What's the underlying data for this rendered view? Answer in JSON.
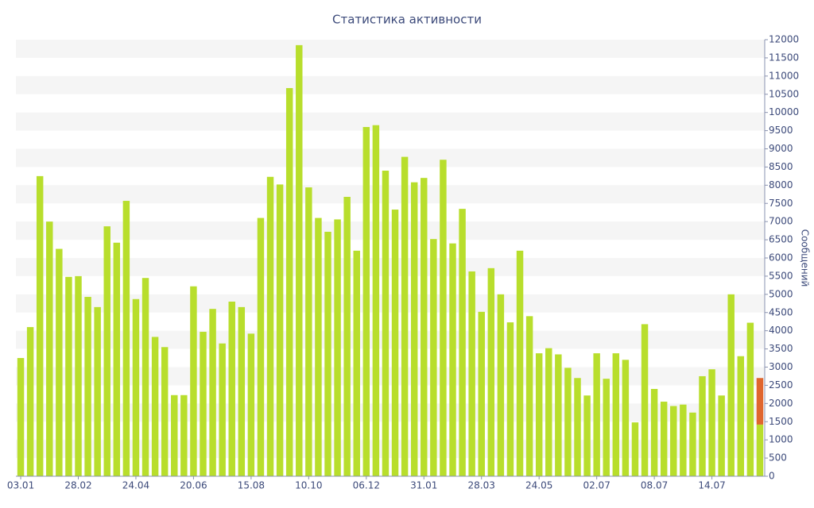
{
  "chart_data": {
    "type": "stacked_bar",
    "title": "Статистика активности",
    "y_label": "Сообщений",
    "categories": [
      "03.01",
      null,
      null,
      null,
      null,
      null,
      "28.02",
      null,
      null,
      null,
      null,
      null,
      "24.04",
      null,
      null,
      null,
      null,
      null,
      "20.06",
      null,
      null,
      null,
      null,
      null,
      "15.08",
      null,
      null,
      null,
      null,
      null,
      "10.10",
      null,
      null,
      null,
      null,
      null,
      "06.12",
      null,
      null,
      null,
      null,
      null,
      "31.01",
      null,
      null,
      null,
      null,
      null,
      "28.03",
      null,
      null,
      null,
      null,
      null,
      "24.05",
      null,
      null,
      null,
      null,
      null,
      "02.07",
      null,
      null,
      null,
      null,
      null,
      "08.07",
      null,
      null,
      null,
      null,
      null,
      "14.07",
      null,
      null,
      null,
      null,
      null
    ],
    "series": [
      {
        "color": "#b8de2c",
        "values": [
          3250,
          4100,
          8250,
          7000,
          6250,
          5480,
          5500,
          4930,
          4650,
          6870,
          6420,
          7570,
          4870,
          5450,
          3830,
          3550,
          2230,
          2230,
          5220,
          3970,
          4600,
          3650,
          4800,
          4650,
          3920,
          7100,
          8230,
          8020,
          10670,
          11850,
          7940,
          7100,
          6720,
          7060,
          7680,
          6200,
          9600,
          9650,
          8400,
          7330,
          8780,
          8080,
          8200,
          6520,
          8700,
          6400,
          7350,
          5630,
          4520,
          5720,
          5000,
          4230,
          6200,
          4400,
          3380,
          3520,
          3350,
          2980,
          2700,
          2220,
          3380,
          2680,
          3380,
          3200,
          1480,
          4180,
          2400,
          2050,
          1930,
          1970,
          1750,
          2750,
          2940,
          2220,
          5000,
          3300,
          4220,
          1420
        ]
      },
      {
        "color": "#e0662e",
        "values": [
          null,
          null,
          null,
          null,
          null,
          null,
          null,
          null,
          null,
          null,
          null,
          null,
          null,
          null,
          null,
          null,
          null,
          null,
          null,
          null,
          null,
          null,
          null,
          null,
          null,
          null,
          null,
          null,
          null,
          null,
          null,
          null,
          null,
          null,
          null,
          null,
          null,
          null,
          null,
          null,
          null,
          null,
          null,
          null,
          null,
          null,
          null,
          null,
          null,
          null,
          null,
          null,
          null,
          null,
          null,
          null,
          null,
          null,
          null,
          null,
          null,
          null,
          null,
          null,
          null,
          null,
          null,
          null,
          null,
          null,
          null,
          null,
          null,
          null,
          null,
          null,
          null,
          1280
        ]
      }
    ],
    "ylim": [
      0,
      12000
    ],
    "yticks": [
      0,
      500,
      1000,
      1500,
      2000,
      2500,
      3000,
      3500,
      4000,
      4500,
      5000,
      5500,
      6000,
      6500,
      7000,
      7500,
      8000,
      8500,
      9000,
      9500,
      10000,
      10500,
      11000,
      11500,
      12000
    ],
    "grid": "bands",
    "y_axis_side": "right"
  }
}
